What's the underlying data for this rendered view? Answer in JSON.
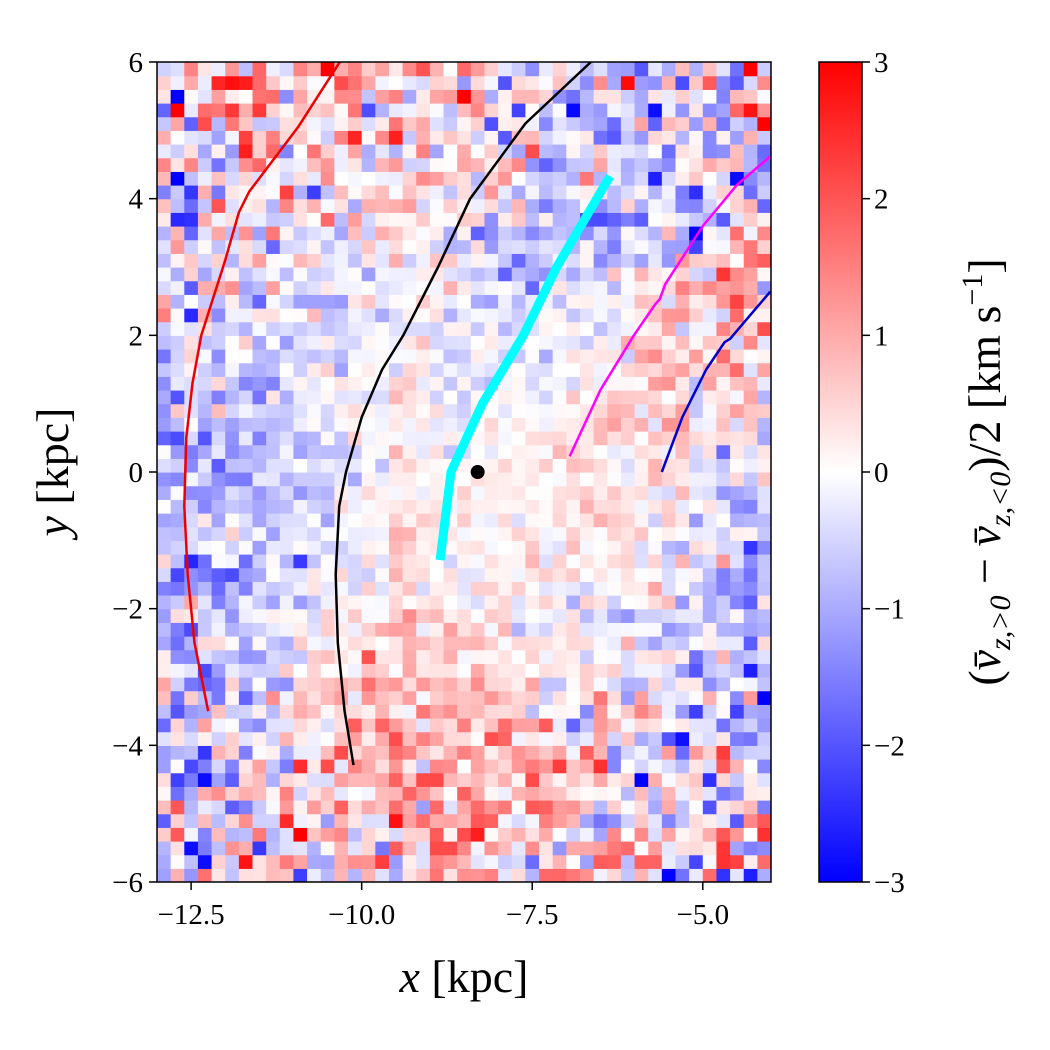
{
  "chart_data": {
    "type": "heatmap",
    "title": "",
    "xlabel_var": "x",
    "xlabel_unit": " [kpc]",
    "ylabel_var": "y",
    "ylabel_unit": " [kpc]",
    "xlim": [
      -13,
      -4
    ],
    "ylim": [
      -6,
      6
    ],
    "xticks": [
      -12.5,
      -10.0,
      -7.5,
      -5.0
    ],
    "xtick_labels": [
      "−12.5",
      "−10.0",
      "−7.5",
      "−5.0"
    ],
    "yticks": [
      -6,
      -4,
      -2,
      0,
      2,
      4,
      6
    ],
    "ytick_labels": [
      "−6",
      "−4",
      "−2",
      "0",
      "2",
      "4",
      "6"
    ],
    "bin_size_kpc": 0.2,
    "colormap": "bwr",
    "colormap_colors": {
      "low": "#0000ff",
      "mid": "#ffffff",
      "high": "#ff0000"
    },
    "clim": [
      -3,
      3
    ],
    "colorbar": {
      "ticks": [
        -3,
        -2,
        -1,
        0,
        1,
        2,
        3
      ],
      "tick_labels": [
        "−3",
        "−2",
        "−1",
        "0",
        "1",
        "2",
        "3"
      ],
      "label_parts": [
        "(",
        "v̄",
        "z,>0",
        " − ",
        "v̄",
        "z,<0",
        ")/2 [km s",
        "−1",
        "]"
      ]
    },
    "grid": false,
    "coarse_mean_grid": {
      "note_units": "km s^-1",
      "x_centers": [
        -12.5,
        -11.5,
        -10.5,
        -9.5,
        -8.5,
        -7.5,
        -6.5,
        -5.5,
        -4.5
      ],
      "y_centers": [
        5.5,
        4.5,
        3.5,
        2.5,
        1.5,
        0.5,
        -0.5,
        -1.5,
        -2.5,
        -3.5,
        -4.5,
        -5.5
      ],
      "values": [
        [
          0.0,
          0.5,
          0.6,
          0.4,
          0.3,
          0.2,
          -0.5,
          -0.8,
          -0.3
        ],
        [
          -0.5,
          0.3,
          0.3,
          0.3,
          0.2,
          -0.2,
          -0.6,
          -0.7,
          -0.5
        ],
        [
          -0.3,
          0.0,
          -0.2,
          0.1,
          -0.2,
          -0.6,
          -0.7,
          -0.5,
          0.3
        ],
        [
          -0.3,
          -0.4,
          -0.3,
          0.0,
          -0.3,
          -0.4,
          -0.2,
          0.6,
          1.0
        ],
        [
          -0.6,
          -0.7,
          -0.3,
          0.1,
          -0.3,
          -0.3,
          0.2,
          0.6,
          0.3
        ],
        [
          -0.7,
          -0.8,
          -0.3,
          0.2,
          -0.2,
          0.1,
          0.4,
          0.5,
          -0.3
        ],
        [
          -0.8,
          -0.9,
          -0.3,
          0.3,
          0.1,
          0.2,
          0.4,
          0.2,
          -0.8
        ],
        [
          -0.8,
          -0.8,
          -0.2,
          0.4,
          0.1,
          0.1,
          0.2,
          -0.2,
          -0.9
        ],
        [
          -0.9,
          -0.6,
          0.0,
          0.5,
          0.3,
          0.1,
          0.1,
          -0.3,
          -0.8
        ],
        [
          -0.7,
          -0.2,
          0.6,
          0.9,
          0.8,
          0.5,
          0.2,
          -0.3,
          -0.9
        ],
        [
          -0.5,
          0.3,
          0.7,
          1.0,
          1.0,
          0.8,
          0.3,
          -0.2,
          -0.3
        ],
        [
          -0.6,
          0.2,
          0.5,
          0.6,
          0.6,
          0.4,
          0.2,
          0.0,
          0.2
        ]
      ]
    },
    "curves": [
      {
        "color": "#ee0000",
        "width": 2.5,
        "points": [
          [
            -12.25,
            -3.5
          ],
          [
            -12.45,
            -2.5
          ],
          [
            -12.55,
            -1.5
          ],
          [
            -12.6,
            -0.5
          ],
          [
            -12.57,
            0.5
          ],
          [
            -12.48,
            1.3
          ],
          [
            -12.35,
            2
          ],
          [
            -12.0,
            3.1
          ],
          [
            -11.8,
            3.8
          ],
          [
            -11.65,
            4.1
          ],
          [
            -10.93,
            5.05
          ],
          [
            -10.32,
            6
          ]
        ]
      },
      {
        "color": "#000000",
        "width": 2.5,
        "points": [
          [
            -10.12,
            -4.29
          ],
          [
            -10.25,
            -3.5
          ],
          [
            -10.35,
            -2.5
          ],
          [
            -10.38,
            -1.5
          ],
          [
            -10.33,
            -0.5
          ],
          [
            -10.23,
            0
          ],
          [
            -10.0,
            0.8
          ],
          [
            -9.7,
            1.5
          ],
          [
            -9.39,
            2
          ],
          [
            -8.88,
            3
          ],
          [
            -8.41,
            4
          ],
          [
            -7.6,
            5.1
          ],
          [
            -6.64,
            6
          ]
        ]
      },
      {
        "color": "#00ffff",
        "width": 9,
        "points": [
          [
            -8.85,
            -1.29
          ],
          [
            -8.69,
            0
          ],
          [
            -8.23,
            1
          ],
          [
            -7.63,
            2
          ],
          [
            -7.14,
            3
          ],
          [
            -6.36,
            4.33
          ]
        ]
      },
      {
        "color": "#ff00ff",
        "width": 2.5,
        "points": [
          [
            -6.95,
            0.23
          ],
          [
            -6.5,
            1.2
          ],
          [
            -6.01,
            2
          ],
          [
            -5.7,
            2.45
          ],
          [
            -5.63,
            2.53
          ],
          [
            -5.55,
            2.75
          ],
          [
            -5.0,
            3.6
          ],
          [
            -4.5,
            4.2
          ],
          [
            -4.01,
            4.62
          ]
        ]
      },
      {
        "color": "#0000cc",
        "width": 2.5,
        "points": [
          [
            -5.6,
            0.0
          ],
          [
            -5.3,
            0.8
          ],
          [
            -4.95,
            1.5
          ],
          [
            -4.68,
            1.9
          ],
          [
            -4.6,
            1.95
          ],
          [
            -4.3,
            2.3
          ],
          [
            -4.01,
            2.64
          ]
        ]
      }
    ],
    "marker": {
      "x": -8.3,
      "y": 0.0,
      "color": "#000000"
    }
  }
}
